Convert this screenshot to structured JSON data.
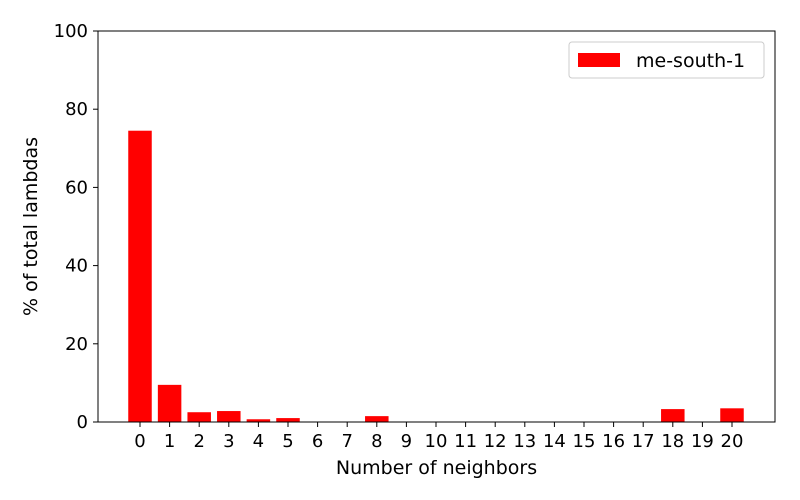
{
  "chart_data": {
    "type": "bar",
    "title": "",
    "xlabel": "Number of neighbors",
    "ylabel": "% of total lambdas",
    "ylim": [
      0,
      100
    ],
    "yticks": [
      0,
      20,
      40,
      60,
      80,
      100
    ],
    "categories": [
      "0",
      "1",
      "2",
      "3",
      "4",
      "5",
      "6",
      "7",
      "8",
      "9",
      "10",
      "11",
      "12",
      "13",
      "14",
      "15",
      "16",
      "17",
      "18",
      "19",
      "20"
    ],
    "series": [
      {
        "name": "me-south-1",
        "color": "#ff0000",
        "values": [
          74.5,
          9.5,
          2.5,
          2.8,
          0.7,
          1.0,
          0,
          0,
          1.5,
          0,
          0,
          0,
          0,
          0,
          0,
          0,
          0,
          0,
          3.3,
          0,
          3.5
        ]
      }
    ],
    "legend_position": "top-right",
    "grid": false
  }
}
